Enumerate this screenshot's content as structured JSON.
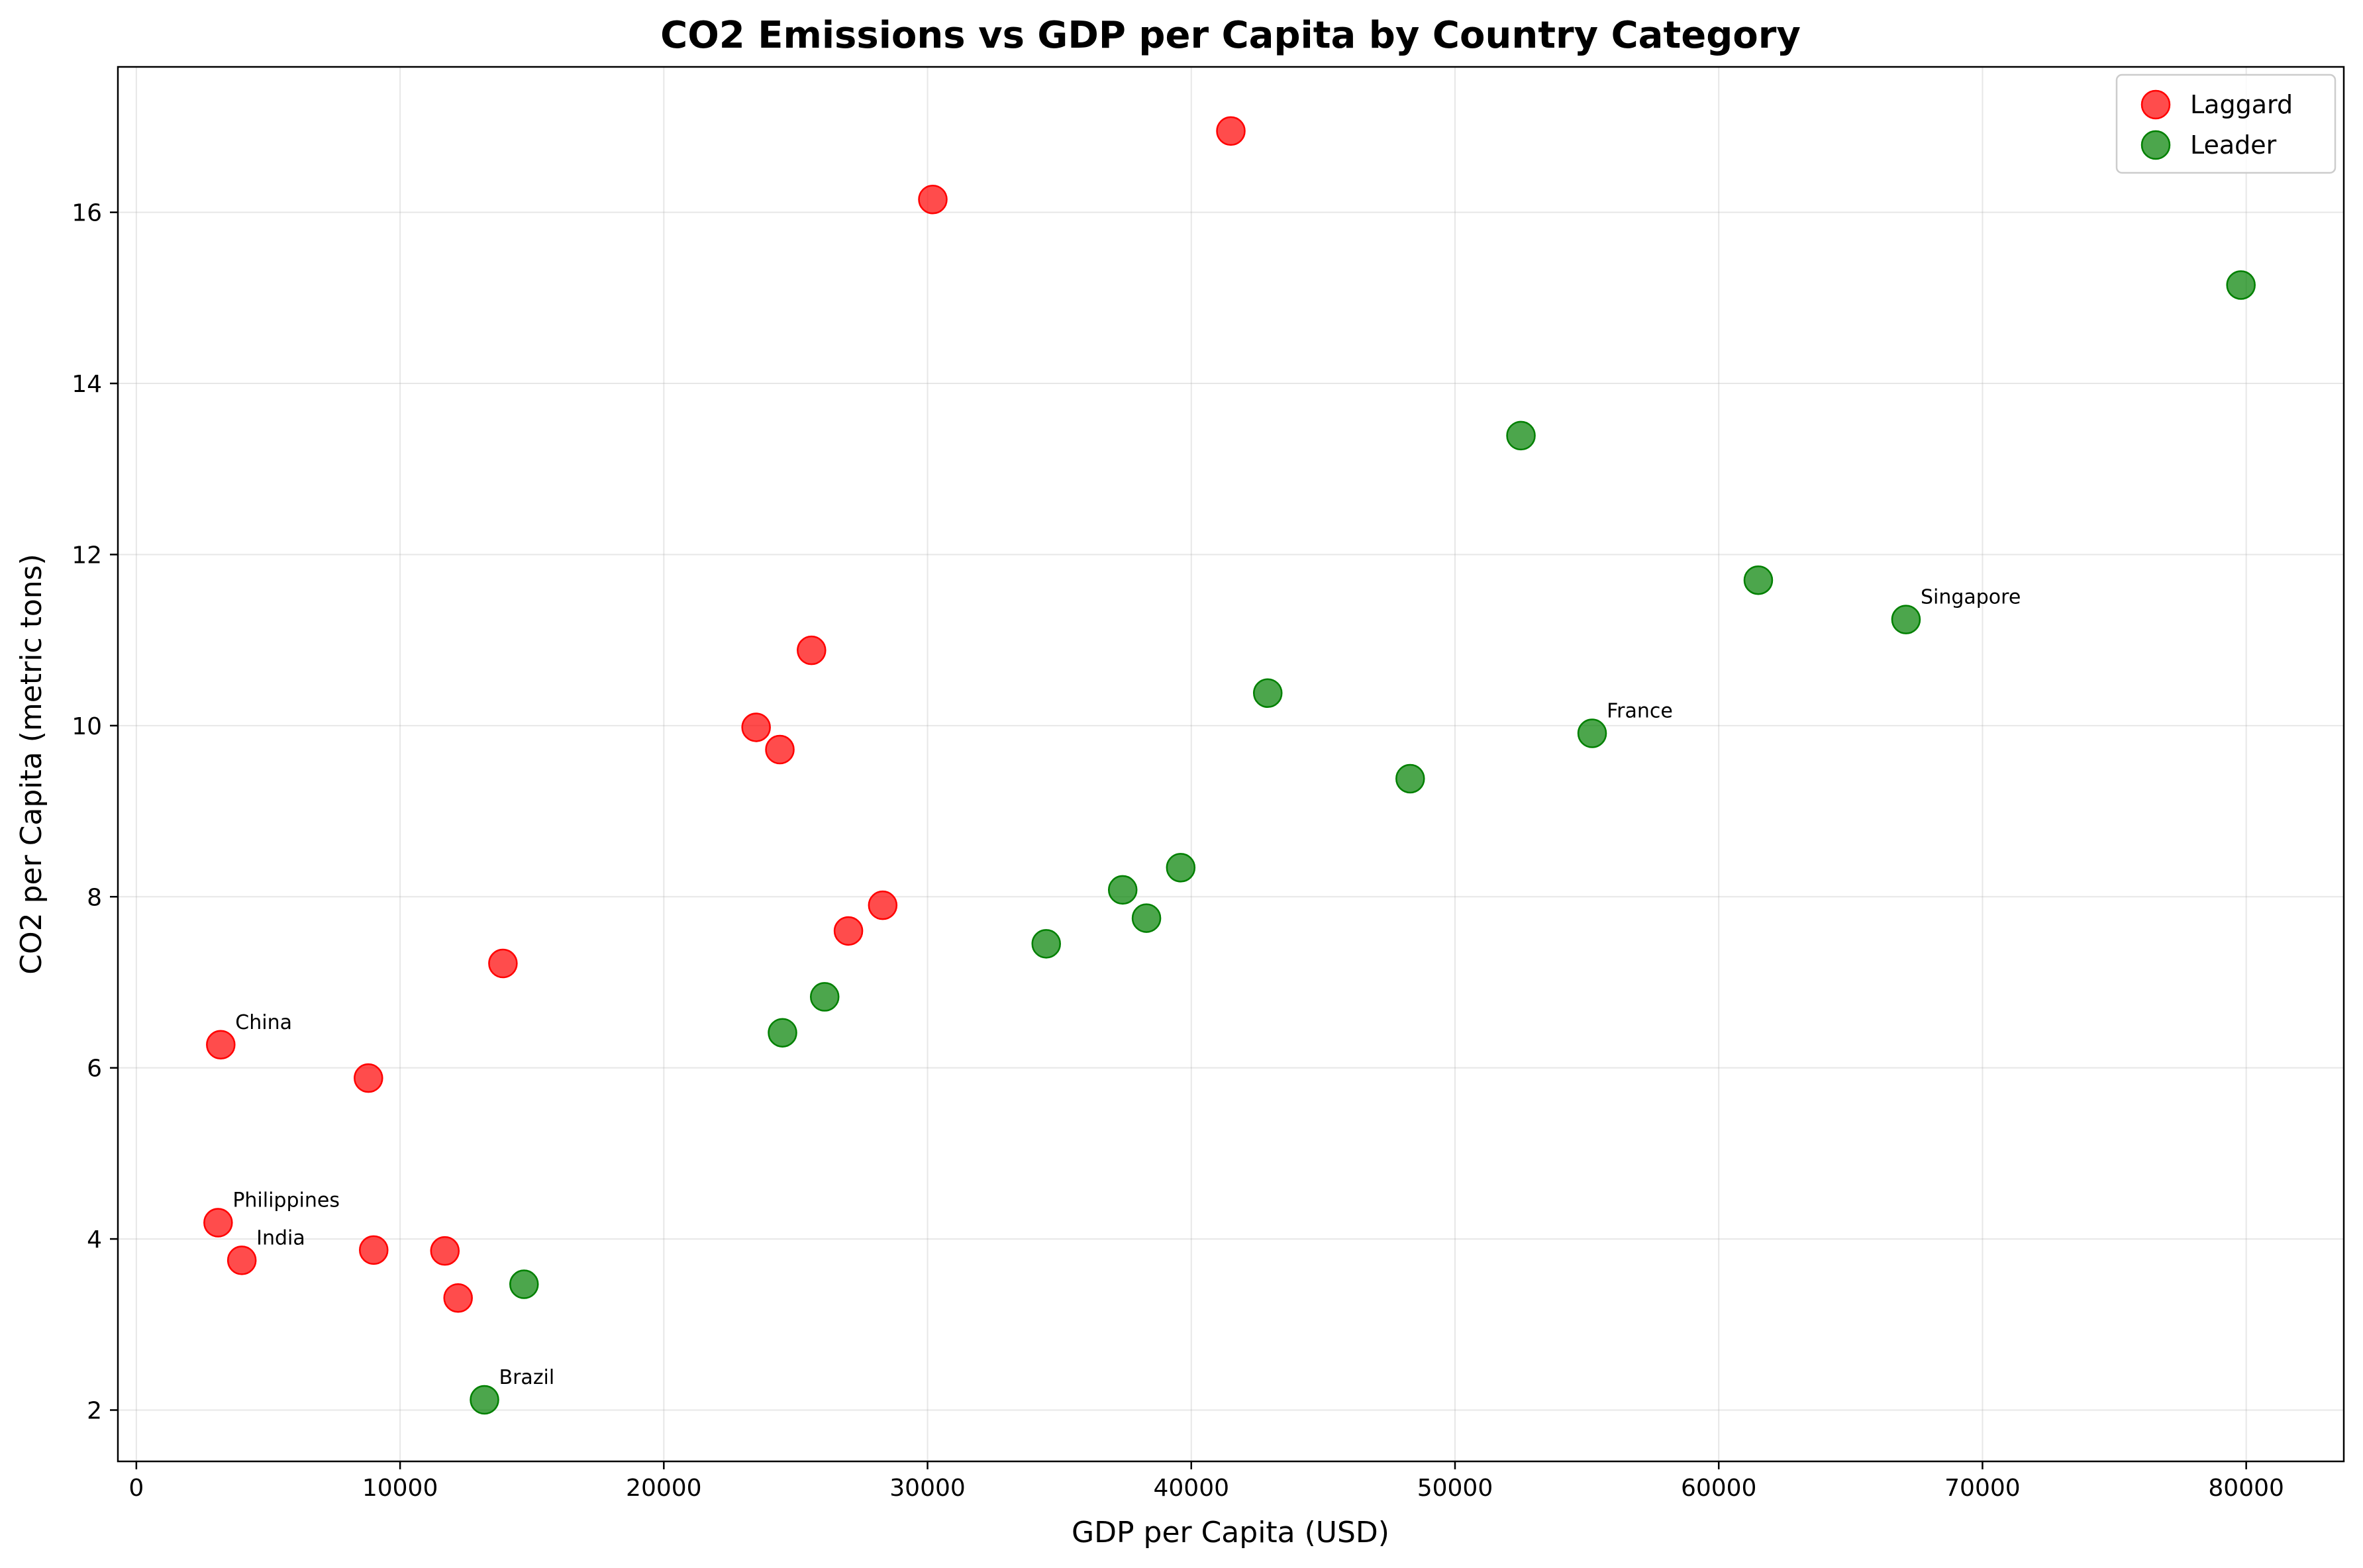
{
  "chart_data": {
    "type": "scatter",
    "title": "CO2 Emissions vs GDP per Capita by Country Category",
    "xlabel": "GDP per Capita (USD)",
    "ylabel": "CO2 per Capita (metric tons)",
    "xlim": [
      -700,
      83700
    ],
    "ylim": [
      1.4,
      17.7
    ],
    "xticks": [
      0,
      10000,
      20000,
      30000,
      40000,
      50000,
      60000,
      70000,
      80000
    ],
    "yticks": [
      2,
      4,
      6,
      8,
      10,
      12,
      14,
      16
    ],
    "grid": true,
    "legend_position": "top-right",
    "series": [
      {
        "name": "Laggard",
        "color": "#ff0000",
        "points": [
          {
            "x": 41500,
            "y": 16.95
          },
          {
            "x": 30200,
            "y": 16.15
          },
          {
            "x": 25600,
            "y": 10.88
          },
          {
            "x": 23500,
            "y": 9.98
          },
          {
            "x": 24400,
            "y": 9.72
          },
          {
            "x": 28300,
            "y": 7.9
          },
          {
            "x": 27000,
            "y": 7.6
          },
          {
            "x": 13900,
            "y": 7.22
          },
          {
            "x": 3200,
            "y": 6.27,
            "label": "China"
          },
          {
            "x": 8800,
            "y": 5.88
          },
          {
            "x": 3100,
            "y": 4.19,
            "label": "Philippines"
          },
          {
            "x": 4000,
            "y": 3.75,
            "label": "India"
          },
          {
            "x": 9000,
            "y": 3.87
          },
          {
            "x": 11700,
            "y": 3.86
          },
          {
            "x": 12200,
            "y": 3.31
          }
        ]
      },
      {
        "name": "Leader",
        "color": "#008000",
        "points": [
          {
            "x": 79800,
            "y": 15.15
          },
          {
            "x": 52500,
            "y": 13.39
          },
          {
            "x": 61500,
            "y": 11.7
          },
          {
            "x": 67100,
            "y": 11.24,
            "label": "Singapore"
          },
          {
            "x": 42900,
            "y": 10.38
          },
          {
            "x": 55200,
            "y": 9.91,
            "label": "France"
          },
          {
            "x": 48300,
            "y": 9.38
          },
          {
            "x": 39600,
            "y": 8.34
          },
          {
            "x": 37400,
            "y": 8.08
          },
          {
            "x": 38300,
            "y": 7.75
          },
          {
            "x": 34500,
            "y": 7.45
          },
          {
            "x": 26100,
            "y": 6.83
          },
          {
            "x": 24500,
            "y": 6.41
          },
          {
            "x": 14700,
            "y": 3.47
          },
          {
            "x": 13200,
            "y": 2.12,
            "label": "Brazil"
          }
        ]
      }
    ]
  }
}
